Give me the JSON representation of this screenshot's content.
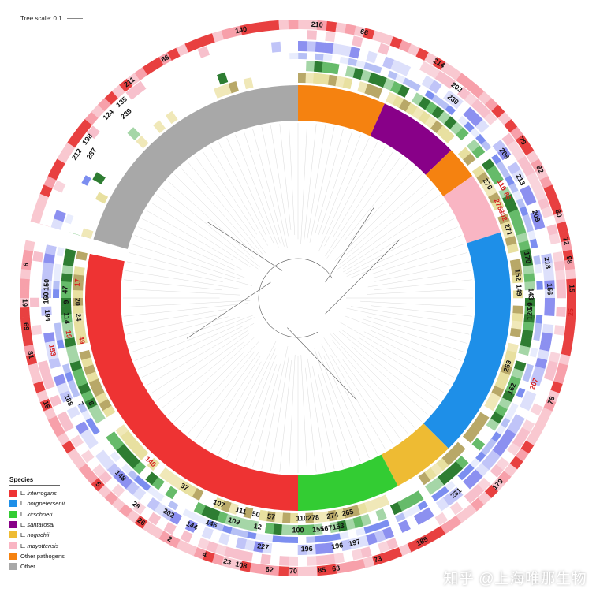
{
  "scale": {
    "label": "Tree scale: 0.1"
  },
  "legend": {
    "title": "Species",
    "items": [
      {
        "genus": "L.",
        "name": "interrogans",
        "color": "#ee3333"
      },
      {
        "genus": "L.",
        "name": "borgpetersenii",
        "color": "#1e8fe8"
      },
      {
        "genus": "L.",
        "name": "kirschneri",
        "color": "#33cc33"
      },
      {
        "genus": "L.",
        "name": "santarosai",
        "color": "#880088"
      },
      {
        "genus": "L.",
        "name": "noguchii",
        "color": "#eebb33"
      },
      {
        "genus": "L.",
        "name": "mayottensis",
        "color": "#f9b5c3"
      },
      {
        "genus": "",
        "name": "Other pathogens",
        "color": "#f58210"
      },
      {
        "genus": "",
        "name": "Other",
        "color": "#a8a8a8"
      }
    ]
  },
  "clade_ring": [
    {
      "species": "Other",
      "color": "#a8a8a8",
      "start_deg": 286,
      "end_deg": 360
    },
    {
      "species": "Other pathogens",
      "color": "#f58210",
      "start_deg": 0,
      "end_deg": 24
    },
    {
      "species": "L. santarosai",
      "color": "#880088",
      "start_deg": 24,
      "end_deg": 46
    },
    {
      "species": "Other pathogens",
      "color": "#f58210",
      "start_deg": 46,
      "end_deg": 55
    },
    {
      "species": "L. mayottensis",
      "color": "#f9b5c3",
      "start_deg": 55,
      "end_deg": 72
    },
    {
      "species": "L. borgpetersenii",
      "color": "#1e8fe8",
      "start_deg": 72,
      "end_deg": 135
    },
    {
      "species": "L. noguchii",
      "color": "#eebb33",
      "start_deg": 135,
      "end_deg": 152
    },
    {
      "species": "L. kirschneri",
      "color": "#33cc33",
      "start_deg": 152,
      "end_deg": 180
    },
    {
      "species": "L. interrogans",
      "color": "#ee3333",
      "start_deg": 180,
      "end_deg": 282
    }
  ],
  "ring_labels": [
    {
      "text": "210",
      "angle": 4,
      "ring": 5,
      "color": "#111111"
    },
    {
      "text": "66",
      "angle": 14,
      "ring": 5,
      "color": "#111111"
    },
    {
      "text": "140",
      "angle": -12,
      "ring": 5,
      "color": "#111111"
    },
    {
      "text": "211",
      "angle": -38,
      "ring": 5,
      "color": "#111111"
    },
    {
      "text": "86",
      "angle": -29,
      "ring": 5,
      "color": "#111111"
    },
    {
      "text": "124",
      "angle": -46,
      "ring": 4,
      "color": "#111111"
    },
    {
      "text": "135",
      "angle": -42,
      "ring": 4,
      "color": "#111111"
    },
    {
      "text": "239",
      "angle": -43,
      "ring": 3,
      "color": "#111111"
    },
    {
      "text": "198",
      "angle": -53,
      "ring": 4,
      "color": "#111111"
    },
    {
      "text": "212",
      "angle": -57,
      "ring": 4,
      "color": "#111111"
    },
    {
      "text": "287",
      "angle": -55,
      "ring": 3,
      "color": "#111111"
    },
    {
      "text": "214",
      "angle": 31,
      "ring": 5,
      "color": "#111111"
    },
    {
      "text": "203",
      "angle": 37,
      "ring": 4,
      "color": "#111111"
    },
    {
      "text": "230",
      "angle": 38,
      "ring": 3,
      "color": "#111111"
    },
    {
      "text": "79",
      "angle": 55,
      "ring": 5,
      "color": "#111111"
    },
    {
      "text": "208",
      "angle": 55,
      "ring": 3,
      "color": "#111111"
    },
    {
      "text": "82",
      "angle": 62,
      "ring": 5,
      "color": "#111111"
    },
    {
      "text": "213",
      "angle": 62,
      "ring": 3,
      "color": "#111111"
    },
    {
      "text": "270",
      "angle": 59,
      "ring": 0,
      "color": "#111111"
    },
    {
      "text": "116",
      "angle": 61,
      "ring": 1,
      "color": "#d62020"
    },
    {
      "text": "86",
      "angle": 64,
      "ring": 1,
      "color": "#d62020"
    },
    {
      "text": "276",
      "angle": 65,
      "ring": 0,
      "color": "#d62020"
    },
    {
      "text": "302",
      "angle": 68,
      "ring": 0,
      "color": "#d62020"
    },
    {
      "text": "80",
      "angle": 72,
      "ring": 5,
      "color": "#111111"
    },
    {
      "text": "209",
      "angle": 71,
      "ring": 3,
      "color": "#111111"
    },
    {
      "text": "271",
      "angle": 72,
      "ring": 0,
      "color": "#111111"
    },
    {
      "text": "72",
      "angle": 78,
      "ring": 5,
      "color": "#111111"
    },
    {
      "text": "98",
      "angle": 82,
      "ring": 5,
      "color": "#111111"
    },
    {
      "text": "170",
      "angle": 80,
      "ring": 1,
      "color": "#111111"
    },
    {
      "text": "218",
      "angle": 82,
      "ring": 3,
      "color": "#111111"
    },
    {
      "text": "152",
      "angle": 84,
      "ring": 0,
      "color": "#111111"
    },
    {
      "text": "15",
      "angle": 88,
      "ring": 5,
      "color": "#111111"
    },
    {
      "text": "156",
      "angle": 88,
      "ring": 3,
      "color": "#111111"
    },
    {
      "text": "149",
      "angle": 88,
      "ring": 0,
      "color": "#111111"
    },
    {
      "text": "143",
      "angle": 89,
      "ring": 1,
      "color": "#111111"
    },
    {
      "text": "25",
      "angle": 93,
      "ring": 5,
      "color": "#d62020"
    },
    {
      "text": "99",
      "angle": 92,
      "ring": 1,
      "color": "#111111"
    },
    {
      "text": "120",
      "angle": 94,
      "ring": 1,
      "color": "#111111"
    },
    {
      "text": "207",
      "angle": 110,
      "ring": 3,
      "color": "#d62020"
    },
    {
      "text": "78",
      "angle": 112,
      "ring": 5,
      "color": "#111111"
    },
    {
      "text": "162",
      "angle": 113,
      "ring": 1,
      "color": "#111111"
    },
    {
      "text": "269",
      "angle": 108,
      "ring": 0,
      "color": "#111111"
    },
    {
      "text": "179",
      "angle": 133,
      "ring": 5,
      "color": "#111111"
    },
    {
      "text": "231",
      "angle": 141,
      "ring": 3,
      "color": "#111111"
    },
    {
      "text": "185",
      "angle": 153,
      "ring": 5,
      "color": "#111111"
    },
    {
      "text": "73",
      "angle": 163,
      "ring": 5,
      "color": "#111111"
    },
    {
      "text": "63",
      "angle": 172,
      "ring": 5,
      "color": "#111111"
    },
    {
      "text": "85",
      "angle": 175,
      "ring": 5,
      "color": "#111111"
    },
    {
      "text": "70",
      "angle": 181,
      "ring": 5,
      "color": "#111111"
    },
    {
      "text": "62",
      "angle": 186,
      "ring": 5,
      "color": "#111111"
    },
    {
      "text": "108",
      "angle": 192,
      "ring": 5,
      "color": "#111111"
    },
    {
      "text": "23",
      "angle": 195,
      "ring": 5,
      "color": "#111111"
    },
    {
      "text": "4",
      "angle": 200,
      "ring": 5,
      "color": "#111111"
    },
    {
      "text": "2",
      "angle": 208,
      "ring": 5,
      "color": "#111111"
    },
    {
      "text": "26",
      "angle": 215,
      "ring": 5,
      "color": "#111111"
    },
    {
      "text": "28",
      "angle": 218,
      "ring": 4,
      "color": "#111111"
    },
    {
      "text": "5",
      "angle": 227,
      "ring": 5,
      "color": "#111111"
    },
    {
      "text": "16",
      "angle": 247,
      "ring": 5,
      "color": "#111111"
    },
    {
      "text": "81",
      "angle": 258,
      "ring": 5,
      "color": "#111111"
    },
    {
      "text": "69",
      "angle": 264,
      "ring": 5,
      "color": "#111111"
    },
    {
      "text": "19",
      "angle": 269,
      "ring": 5,
      "color": "#111111"
    },
    {
      "text": "6",
      "angle": 277,
      "ring": 5,
      "color": "#111111"
    },
    {
      "text": "196",
      "angle": 171,
      "ring": 3,
      "color": "#111111"
    },
    {
      "text": "197",
      "angle": 167,
      "ring": 3,
      "color": "#111111"
    },
    {
      "text": "196",
      "angle": 178,
      "ring": 3,
      "color": "#111111"
    },
    {
      "text": "153",
      "angle": 170,
      "ring": 1,
      "color": "#111111"
    },
    {
      "text": "167",
      "angle": 173,
      "ring": 1,
      "color": "#111111"
    },
    {
      "text": "155",
      "angle": 175,
      "ring": 1,
      "color": "#111111"
    },
    {
      "text": "274",
      "angle": 171,
      "ring": 0,
      "color": "#111111"
    },
    {
      "text": "265",
      "angle": 167,
      "ring": 0,
      "color": "#111111"
    },
    {
      "text": "278",
      "angle": 176,
      "ring": 0,
      "color": "#111111"
    },
    {
      "text": "110",
      "angle": 179,
      "ring": 0,
      "color": "#111111"
    },
    {
      "text": "100",
      "angle": 180,
      "ring": 1,
      "color": "#111111"
    },
    {
      "text": "227",
      "angle": 188,
      "ring": 3,
      "color": "#111111"
    },
    {
      "text": "57",
      "angle": 187,
      "ring": 0,
      "color": "#111111"
    },
    {
      "text": "50",
      "angle": 191,
      "ring": 0,
      "color": "#111111"
    },
    {
      "text": "12",
      "angle": 190,
      "ring": 1,
      "color": "#111111"
    },
    {
      "text": "111",
      "angle": 195,
      "ring": 0,
      "color": "#111111"
    },
    {
      "text": "109",
      "angle": 196,
      "ring": 1,
      "color": "#111111"
    },
    {
      "text": "107",
      "angle": 201,
      "ring": 0,
      "color": "#111111"
    },
    {
      "text": "146",
      "angle": 201,
      "ring": 2,
      "color": "#111111"
    },
    {
      "text": "144",
      "angle": 205,
      "ring": 3,
      "color": "#111111"
    },
    {
      "text": "202",
      "angle": 211,
      "ring": 3,
      "color": "#111111"
    },
    {
      "text": "37",
      "angle": 211,
      "ring": 0,
      "color": "#111111"
    },
    {
      "text": "148",
      "angle": 225,
      "ring": 3,
      "color": "#111111"
    },
    {
      "text": "140",
      "angle": 222,
      "ring": 0,
      "color": "#d62020"
    },
    {
      "text": "153",
      "angle": 258,
      "ring": 3,
      "color": "#d62020"
    },
    {
      "text": "8",
      "angle": 243,
      "ring": 1,
      "color": "#111111"
    },
    {
      "text": "7",
      "angle": 244,
      "ring": 2,
      "color": "#111111"
    },
    {
      "text": "188",
      "angle": 246,
      "ring": 3,
      "color": "#111111"
    },
    {
      "text": "49",
      "angle": 259,
      "ring": 0,
      "color": "#d62020"
    },
    {
      "text": "19",
      "angle": 261,
      "ring": 1,
      "color": "#d62020"
    },
    {
      "text": "24",
      "angle": 265,
      "ring": 0,
      "color": "#111111"
    },
    {
      "text": "114",
      "angle": 265,
      "ring": 1,
      "color": "#111111"
    },
    {
      "text": "194",
      "angle": 266,
      "ring": 3,
      "color": "#111111"
    },
    {
      "text": "20",
      "angle": 269,
      "ring": 0,
      "color": "#111111"
    },
    {
      "text": "6",
      "angle": 269,
      "ring": 1,
      "color": "#111111"
    },
    {
      "text": "160",
      "angle": 270,
      "ring": 3,
      "color": "#111111"
    },
    {
      "text": "47",
      "angle": 272,
      "ring": 1,
      "color": "#111111"
    },
    {
      "text": "150",
      "angle": 273,
      "ring": 3,
      "color": "#111111"
    },
    {
      "text": "17",
      "angle": 274,
      "ring": 0,
      "color": "#d62020"
    }
  ],
  "watermark": "知乎 @上海唯那生物"
}
